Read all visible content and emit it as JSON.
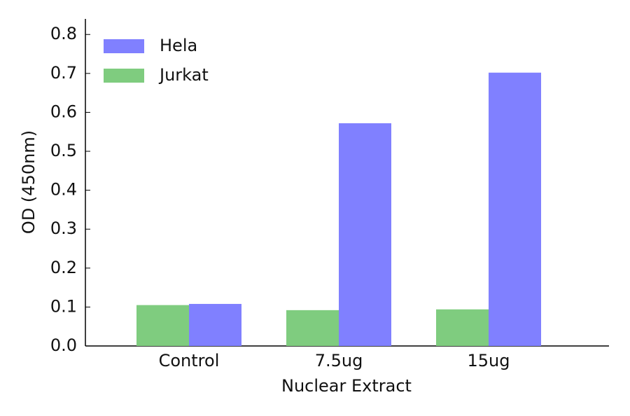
{
  "chart_data": {
    "type": "bar",
    "xlabel": "Nuclear Extract",
    "ylabel": "OD (450nm)",
    "categories": [
      "Control",
      "7.5ug",
      "15ug"
    ],
    "series": [
      {
        "name": "Hela",
        "color": "#8080ff",
        "values": [
          0.108,
          0.572,
          0.702
        ]
      },
      {
        "name": "Jurkat",
        "color": "#7fcc7f",
        "values": [
          0.105,
          0.092,
          0.094
        ]
      }
    ],
    "ylim": [
      0,
      0.84
    ],
    "yticks": [
      {
        "value": 0,
        "label": "0.0"
      },
      0.1,
      0.2,
      0.3,
      0.4,
      0.5,
      0.6,
      0.7,
      0.8
    ],
    "legend": "upper-left"
  }
}
